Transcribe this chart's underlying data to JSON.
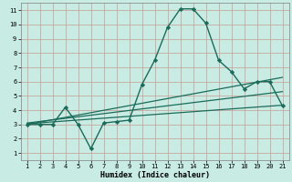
{
  "xlabel": "Humidex (Indice chaleur)",
  "background_color": "#c8ece4",
  "grid_color": "#c8a8a0",
  "line_color": "#1a6b5a",
  "xlim": [
    0.5,
    21.5
  ],
  "ylim": [
    0.5,
    11.5
  ],
  "xticks": [
    1,
    2,
    3,
    4,
    5,
    6,
    7,
    8,
    9,
    10,
    11,
    12,
    13,
    14,
    15,
    16,
    17,
    18,
    19,
    20,
    21
  ],
  "yticks": [
    1,
    2,
    3,
    4,
    5,
    6,
    7,
    8,
    9,
    10,
    11
  ],
  "series": [
    {
      "x": [
        1,
        2,
        3,
        4,
        5,
        6,
        7,
        8,
        9,
        10,
        11,
        12,
        13,
        14,
        15,
        16,
        17,
        18,
        19,
        20,
        21
      ],
      "y": [
        3.0,
        3.0,
        3.0,
        4.2,
        3.0,
        1.3,
        3.1,
        3.2,
        3.3,
        5.8,
        7.5,
        9.8,
        11.1,
        11.1,
        10.1,
        7.5,
        6.7,
        5.5,
        6.0,
        6.0,
        4.3
      ],
      "marker": "D",
      "markersize": 2.2,
      "linewidth": 1.0,
      "zorder": 5
    },
    {
      "x": [
        1,
        21
      ],
      "y": [
        3.1,
        5.3
      ],
      "marker": null,
      "markersize": 0,
      "linewidth": 0.9,
      "zorder": 4
    },
    {
      "x": [
        1,
        21
      ],
      "y": [
        3.05,
        4.35
      ],
      "marker": null,
      "markersize": 0,
      "linewidth": 0.9,
      "zorder": 4
    },
    {
      "x": [
        1,
        21
      ],
      "y": [
        3.0,
        6.3
      ],
      "marker": null,
      "markersize": 0,
      "linewidth": 0.9,
      "zorder": 4
    }
  ],
  "tick_fontsize": 5.0,
  "xlabel_fontsize": 6.0,
  "xlabel_fontweight": "bold"
}
